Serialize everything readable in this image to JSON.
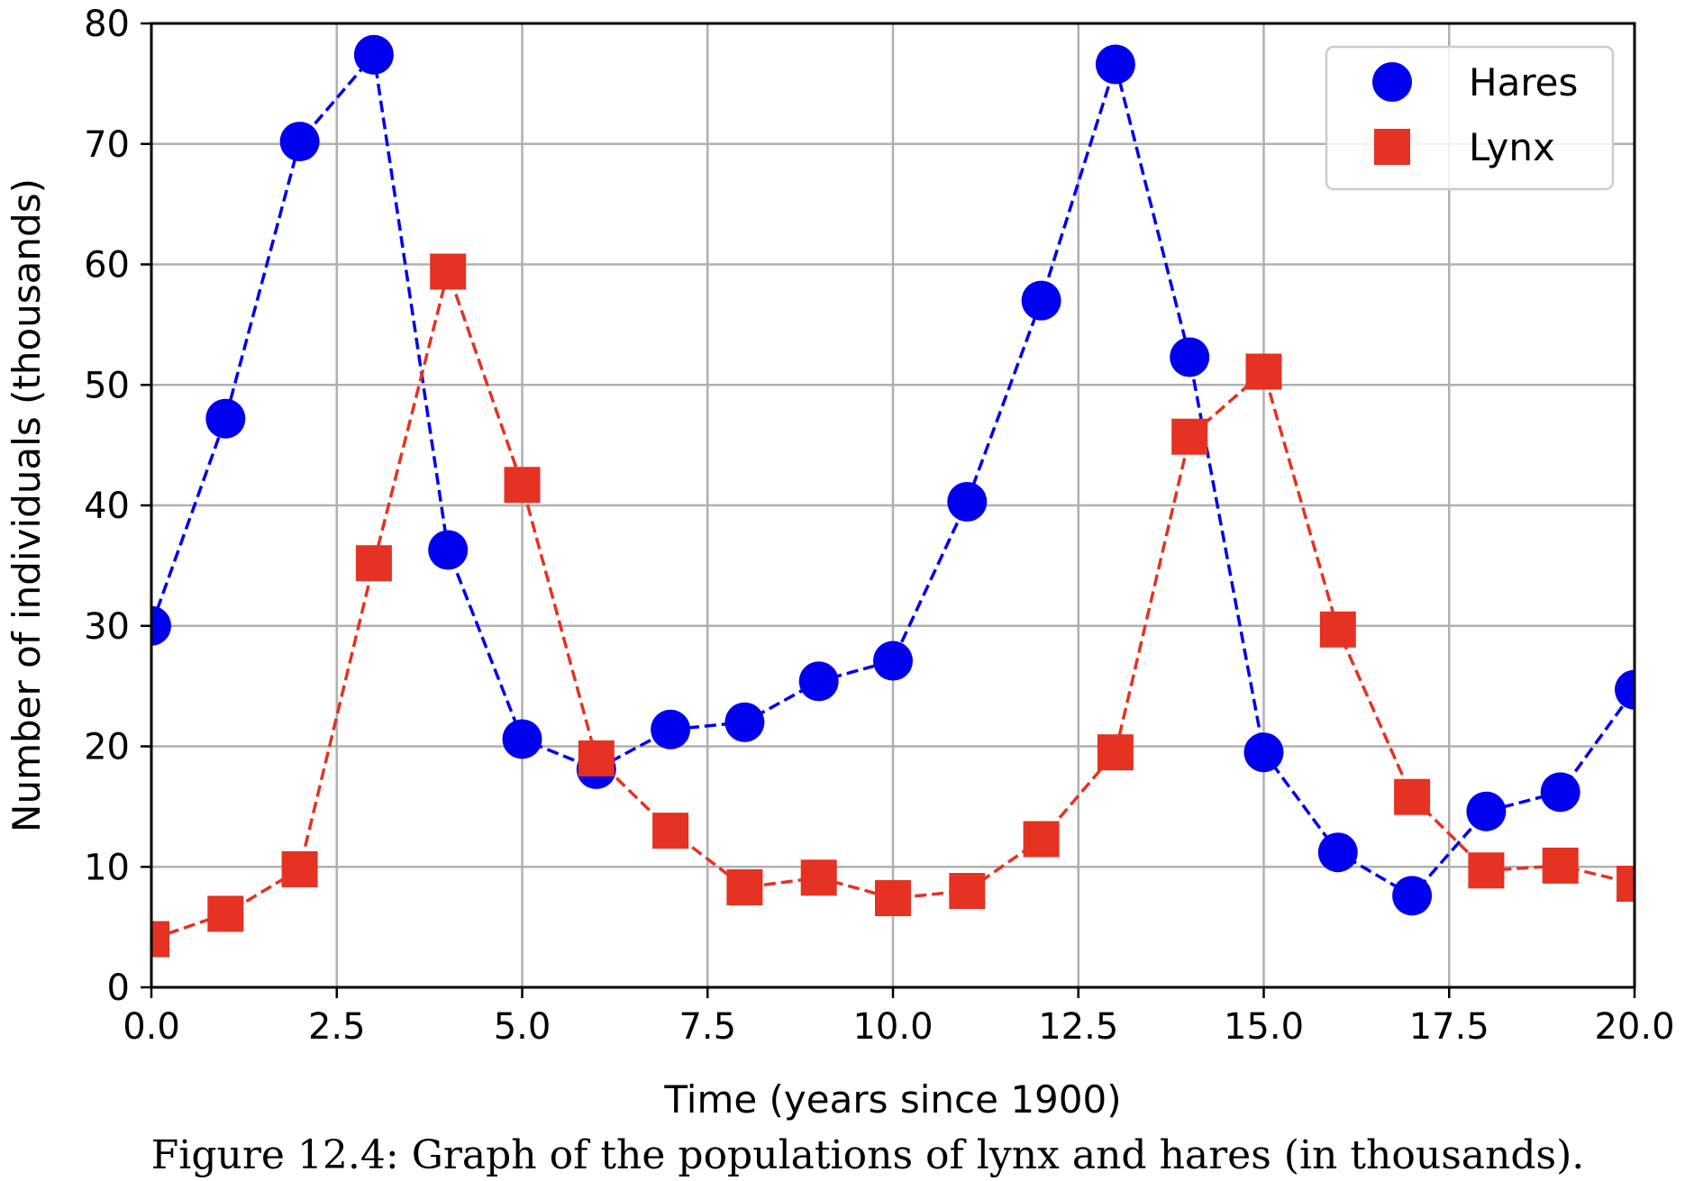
{
  "caption": "Figure 12.4: Graph of the populations of lynx and hares (in thousands).",
  "chart_data": {
    "type": "line",
    "title": "",
    "xlabel": "Time (years since 1900)",
    "ylabel": "Number of individuals (thousands)",
    "xlim": [
      0,
      20
    ],
    "ylim": [
      0,
      80
    ],
    "xticks": [
      "0.0",
      "2.5",
      "5.0",
      "7.5",
      "10.0",
      "12.5",
      "15.0",
      "17.5",
      "20.0"
    ],
    "yticks": [
      "0",
      "10",
      "20",
      "30",
      "40",
      "50",
      "60",
      "70",
      "80"
    ],
    "grid": true,
    "legend_position": "top-right",
    "x": [
      0,
      1,
      2,
      3,
      4,
      5,
      6,
      7,
      8,
      9,
      10,
      11,
      12,
      13,
      14,
      15,
      16,
      17,
      18,
      19,
      20
    ],
    "series": [
      {
        "name": "Hares",
        "color": "#0000ee",
        "marker": "circle",
        "line_style": "dashed",
        "values": [
          30.0,
          47.2,
          70.2,
          77.4,
          36.3,
          20.6,
          18.1,
          21.4,
          22.0,
          25.4,
          27.1,
          40.3,
          57.0,
          76.6,
          52.3,
          19.5,
          11.2,
          7.6,
          14.6,
          16.2,
          24.7
        ]
      },
      {
        "name": "Lynx",
        "color": "#e53222",
        "marker": "square",
        "line_style": "dashed",
        "values": [
          4.0,
          6.1,
          9.8,
          35.2,
          59.4,
          41.7,
          19.0,
          13.0,
          8.3,
          9.1,
          7.4,
          8.0,
          12.3,
          19.5,
          45.7,
          51.1,
          29.7,
          15.8,
          9.7,
          10.1,
          8.6
        ]
      }
    ]
  }
}
